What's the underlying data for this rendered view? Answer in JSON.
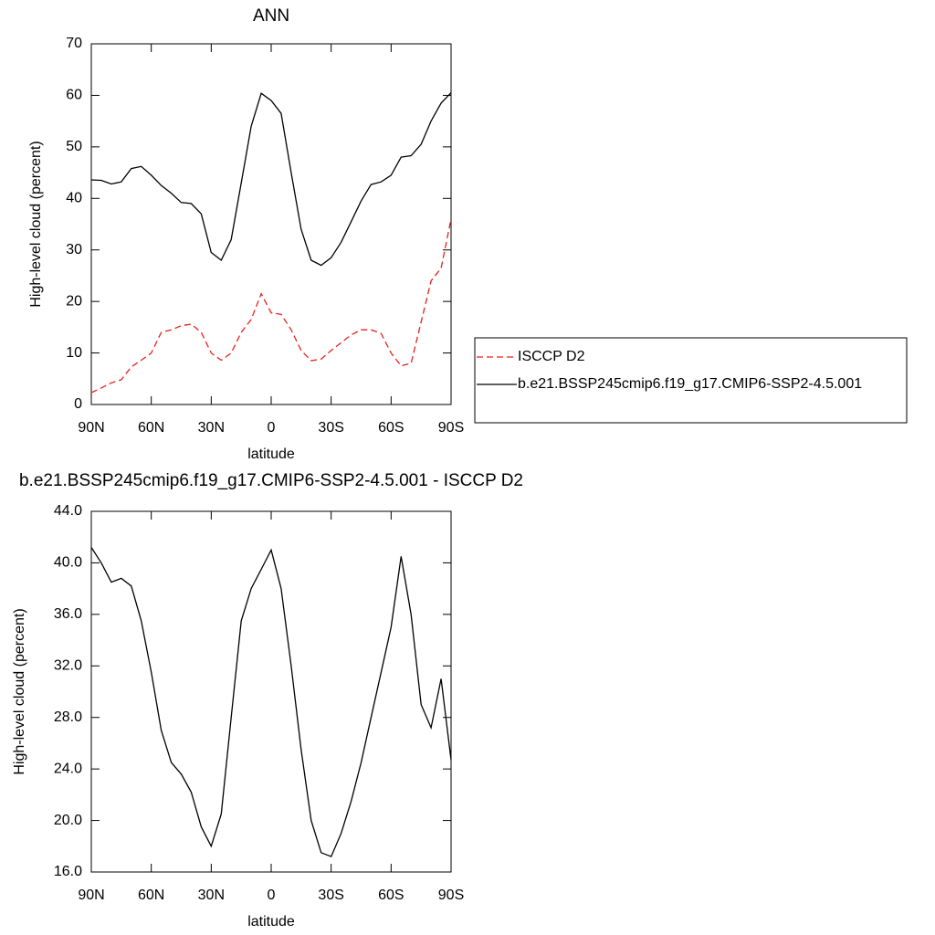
{
  "chart_data": [
    {
      "type": "line",
      "title": "ANN",
      "x_label": "latitude",
      "y_label": "High-level cloud (percent)",
      "x": [
        90,
        85,
        80,
        75,
        70,
        65,
        60,
        55,
        50,
        45,
        40,
        35,
        30,
        25,
        20,
        15,
        10,
        5,
        0,
        -5,
        -10,
        -15,
        -20,
        -25,
        -30,
        -35,
        -40,
        -45,
        -50,
        -55,
        -60,
        -65,
        -70,
        -75,
        -80,
        -85,
        -90
      ],
      "series": [
        {
          "name": "ISCCP D2",
          "color": "#e8201c",
          "linestyle": "dashed",
          "values": [
            2.3,
            3.2,
            4.2,
            4.8,
            7.3,
            8.6,
            10,
            14,
            14.5,
            15.3,
            15.6,
            14,
            10,
            8.6,
            10,
            14,
            16.5,
            21.5,
            17.8,
            17.5,
            14.5,
            10.5,
            8.5,
            8.8,
            10.5,
            12,
            13.5,
            14.5,
            14.5,
            13.8,
            10,
            7.5,
            8,
            16,
            24,
            26.5,
            36
          ]
        },
        {
          "name": "b.e21.BSSP245cmip6.f19_g17.CMIP6-SSP2-4.5.001",
          "color": "#000000",
          "linestyle": "solid",
          "values": [
            43.6,
            43.5,
            42.8,
            43.2,
            45.8,
            46.2,
            44.5,
            42.5,
            41,
            39.2,
            39,
            37,
            29.5,
            28,
            32,
            43,
            54,
            60.4,
            59,
            56.5,
            45,
            34,
            28,
            27,
            28.5,
            31.5,
            35.5,
            39.5,
            42.7,
            43.2,
            44.5,
            48,
            48.3,
            50.5,
            55,
            58.5,
            60.5
          ]
        }
      ],
      "xlim": [
        90,
        -90
      ],
      "xticks": [
        {
          "value": 90,
          "label": "90N"
        },
        {
          "value": 60,
          "label": "60N"
        },
        {
          "value": 30,
          "label": "30N"
        },
        0,
        {
          "value": -30,
          "label": "30S"
        },
        {
          "value": -60,
          "label": "60S"
        },
        {
          "value": -90,
          "label": "90S"
        }
      ],
      "ylim": [
        0,
        70
      ],
      "yticks": [
        0,
        10,
        20,
        30,
        40,
        50,
        60,
        70
      ]
    },
    {
      "type": "line",
      "title": "b.e21.BSSP245cmip6.f19_g17.CMIP6-SSP2-4.5.001 - ISCCP D2",
      "x_label": "latitude",
      "y_label": "High-level cloud (percent)",
      "x": [
        90,
        85,
        80,
        75,
        70,
        65,
        60,
        55,
        50,
        45,
        40,
        35,
        30,
        25,
        20,
        15,
        10,
        5,
        0,
        -5,
        -10,
        -15,
        -20,
        -25,
        -30,
        -35,
        -40,
        -45,
        -50,
        -55,
        -60,
        -65,
        -70,
        -75,
        -80,
        -85,
        -90
      ],
      "series": [
        {
          "color": "#000000",
          "linestyle": "solid",
          "values": [
            41.2,
            40,
            38.5,
            38.8,
            38.2,
            35.5,
            31.5,
            27,
            24.5,
            23.6,
            22.2,
            19.5,
            18,
            20.5,
            28,
            35.5,
            38,
            39.5,
            41,
            38,
            32,
            25.5,
            20,
            17.5,
            17.2,
            19,
            21.5,
            24.5,
            28,
            31.5,
            35,
            40.5,
            36,
            29,
            27.2,
            31,
            24.7
          ]
        }
      ],
      "xlim": [
        90,
        -90
      ],
      "xticks": [
        {
          "value": 90,
          "label": "90N"
        },
        {
          "value": 60,
          "label": "60N"
        },
        {
          "value": 30,
          "label": "30N"
        },
        0,
        {
          "value": -30,
          "label": "30S"
        },
        {
          "value": -60,
          "label": "60S"
        },
        {
          "value": -90,
          "label": "90S"
        }
      ],
      "ylim": [
        16,
        44
      ],
      "yticks": [
        {
          "value": 16,
          "label": "16.0"
        },
        {
          "value": 20,
          "label": "20.0"
        },
        {
          "value": 24,
          "label": "24.0"
        },
        {
          "value": 28,
          "label": "28.0"
        },
        {
          "value": 32,
          "label": "32.0"
        },
        {
          "value": 36,
          "label": "36.0"
        },
        {
          "value": 40,
          "label": "40.0"
        },
        {
          "value": 44,
          "label": "44.0"
        }
      ]
    }
  ]
}
